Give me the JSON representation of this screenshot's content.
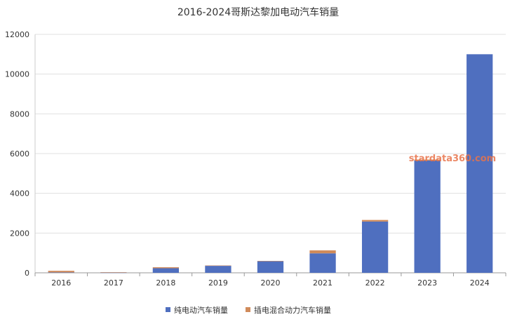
{
  "chart_data": {
    "type": "bar",
    "stacked": true,
    "title": "2016-2024哥斯达黎加电动汽车销量",
    "categories": [
      "2016",
      "2017",
      "2018",
      "2019",
      "2020",
      "2021",
      "2022",
      "2023",
      "2024"
    ],
    "series": [
      {
        "name": "纯电动汽车销量",
        "color": "#4f6fbf",
        "values": [
          20,
          10,
          230,
          350,
          580,
          980,
          2580,
          5650,
          11000
        ]
      },
      {
        "name": "插电混合动力汽车销量",
        "color": "#d08b5b",
        "values": [
          80,
          20,
          50,
          20,
          20,
          150,
          80,
          50,
          0
        ]
      }
    ],
    "ylim": [
      0,
      12000
    ],
    "yticks": [
      0,
      2000,
      4000,
      6000,
      8000,
      10000,
      12000
    ],
    "grid": true,
    "legend": "bottom"
  },
  "watermark": "stardata360.com"
}
